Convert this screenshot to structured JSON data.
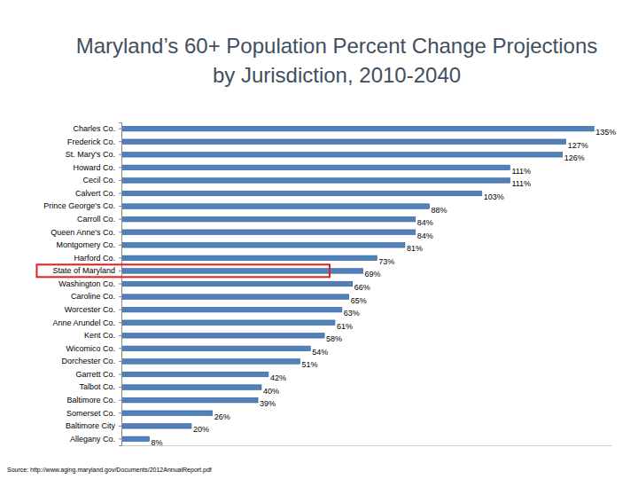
{
  "chart_data": {
    "type": "bar",
    "orientation": "horizontal",
    "title": "Maryland’s 60+ Population Percent Change Projections by Jurisdiction, 2010-2040",
    "categories": [
      "Charles Co.",
      "Frederick Co.",
      "St. Mary's Co.",
      "Howard Co.",
      "Cecil Co.",
      "Calvert Co.",
      "Prince George's Co.",
      "Carroll Co.",
      "Queen Anne's Co.",
      "Montgomery Co.",
      "Harford Co.",
      "State of Maryland",
      "Washington Co.",
      "Caroline Co.",
      "Worcester Co.",
      "Anne Arundel Co.",
      "Kent Co.",
      "Wicomico Co.",
      "Dorchester Co.",
      "Garrett Co.",
      "Talbot Co.",
      "Baltimore Co.",
      "Somerset Co.",
      "Baltimore City",
      "Allegany Co."
    ],
    "values": [
      135,
      127,
      126,
      111,
      111,
      103,
      88,
      84,
      84,
      81,
      73,
      69,
      66,
      65,
      63,
      61,
      58,
      54,
      51,
      42,
      40,
      39,
      26,
      20,
      8
    ],
    "value_labels": [
      "135%",
      "127%",
      "126%",
      "111%",
      "111%",
      "103%",
      "88%",
      "84%",
      "84%",
      "81%",
      "73%",
      "69%",
      "66%",
      "65%",
      "63%",
      "61%",
      "58%",
      "54%",
      "51%",
      "42%",
      "40%",
      "39%",
      "26%",
      "20%",
      "8%"
    ],
    "color": "#4f81bd",
    "xlim": [
      0,
      140
    ],
    "xticks": [],
    "grid": false,
    "data_labels": true,
    "tick_labels": "y",
    "annotations": [
      "Source: http://www.aging.maryland.gov/Documents/2012AnnualReport.pdf"
    ]
  }
}
